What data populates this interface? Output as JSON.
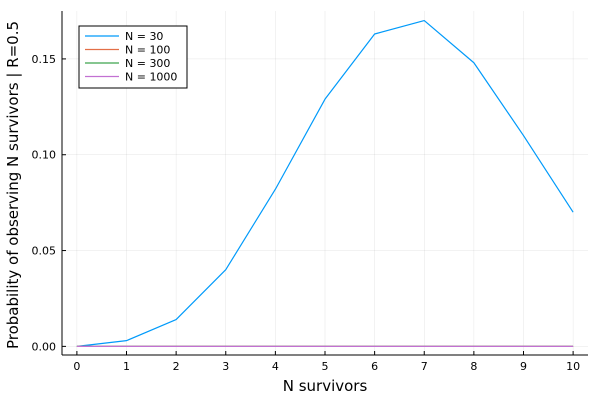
{
  "chart_data": {
    "type": "line",
    "title": "",
    "xlabel": "N survivors",
    "ylabel": "Probability of observing N survivors | R=0.5",
    "xlim": [
      -0.3,
      10.3
    ],
    "ylim": [
      -0.0045,
      0.175
    ],
    "grid": true,
    "legend_position": "top-left",
    "x_ticks": [
      0,
      1,
      2,
      3,
      4,
      5,
      6,
      7,
      8,
      9,
      10
    ],
    "x_tick_labels": [
      "0",
      "1",
      "2",
      "3",
      "4",
      "5",
      "6",
      "7",
      "8",
      "9",
      "10"
    ],
    "y_ticks": [
      0.0,
      0.05,
      0.1,
      0.15
    ],
    "y_tick_labels": [
      "0.00",
      "0.05",
      "0.10",
      "0.15"
    ],
    "x": [
      0,
      1,
      2,
      3,
      4,
      5,
      6,
      7,
      8,
      9,
      10
    ],
    "series": [
      {
        "name": "N = 30",
        "color": "#009AFA",
        "values": [
          0.0,
          0.003,
          0.014,
          0.04,
          0.082,
          0.129,
          0.163,
          0.17,
          0.148,
          0.11,
          0.07
        ]
      },
      {
        "name": "N = 100",
        "color": "#E36F47",
        "values": [
          0,
          0,
          0,
          0,
          0,
          0,
          0,
          0,
          0,
          0,
          0
        ]
      },
      {
        "name": "N = 300",
        "color": "#3EA44E",
        "values": [
          0,
          0,
          0,
          0,
          0,
          0,
          0,
          0,
          0,
          0,
          0
        ]
      },
      {
        "name": "N = 1000",
        "color": "#C271D2",
        "values": [
          0,
          0,
          0,
          0,
          0,
          0,
          0,
          0,
          0,
          0,
          0
        ]
      }
    ]
  }
}
